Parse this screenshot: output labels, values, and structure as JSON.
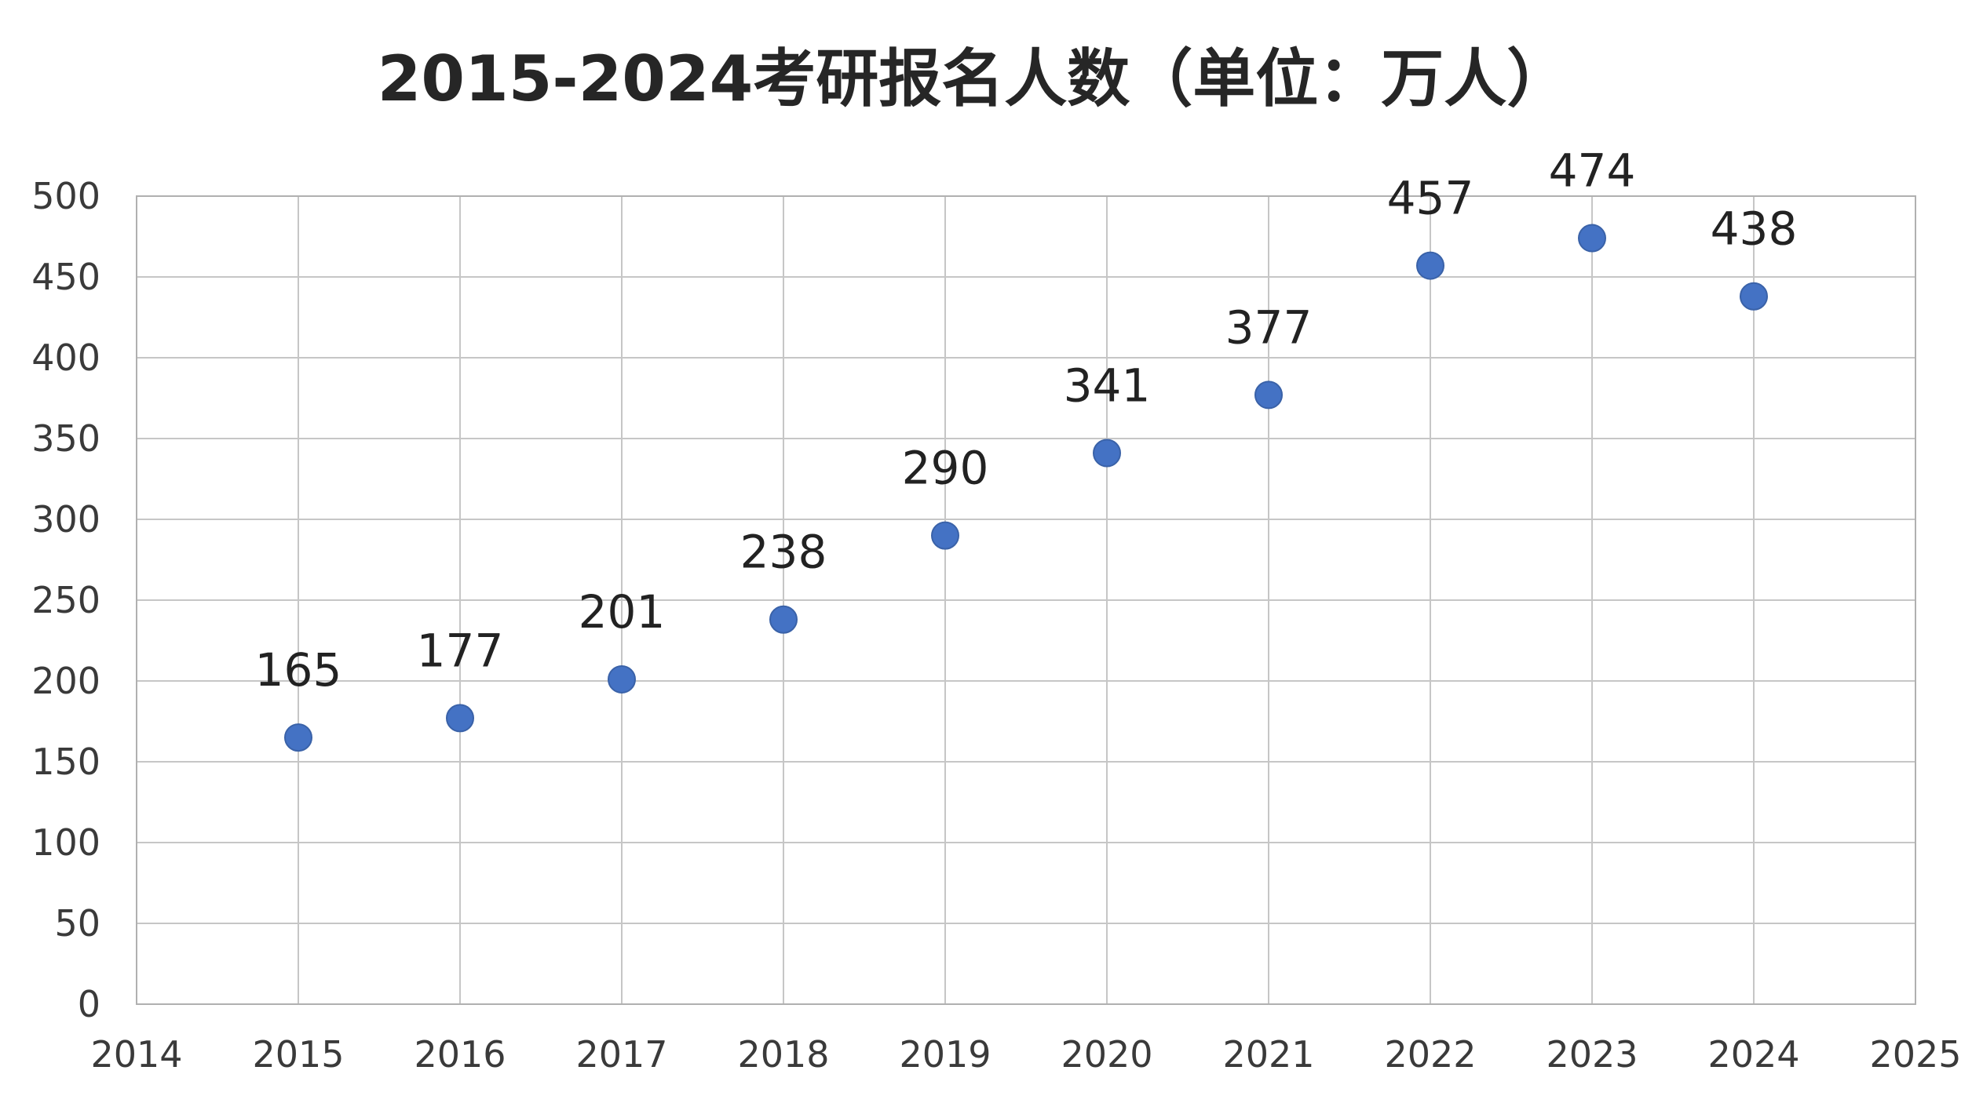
{
  "chart_data": {
    "type": "scatter",
    "title": "2015-2024考研报名人数（单位：万人）",
    "xlabel": "",
    "ylabel": "",
    "xlim": [
      2014,
      2025
    ],
    "ylim": [
      0,
      500
    ],
    "x_ticks": [
      "2014",
      "2015",
      "2016",
      "2017",
      "2018",
      "2019",
      "2020",
      "2021",
      "2022",
      "2023",
      "2024",
      "2025"
    ],
    "y_ticks": [
      "0",
      "50",
      "100",
      "150",
      "200",
      "250",
      "300",
      "350",
      "400",
      "450",
      "500"
    ],
    "grid": true,
    "legend": "none",
    "series": [
      {
        "color": "#4472c4",
        "points": [
          {
            "x": 2015,
            "y": 165,
            "label": "165"
          },
          {
            "x": 2016,
            "y": 177,
            "label": "177"
          },
          {
            "x": 2017,
            "y": 201,
            "label": "201"
          },
          {
            "x": 2018,
            "y": 238,
            "label": "238"
          },
          {
            "x": 2019,
            "y": 290,
            "label": "290"
          },
          {
            "x": 2020,
            "y": 341,
            "label": "341"
          },
          {
            "x": 2021,
            "y": 377,
            "label": "377"
          },
          {
            "x": 2022,
            "y": 457,
            "label": "457"
          },
          {
            "x": 2023,
            "y": 474,
            "label": "474"
          },
          {
            "x": 2024,
            "y": 438,
            "label": "438"
          }
        ]
      }
    ]
  }
}
